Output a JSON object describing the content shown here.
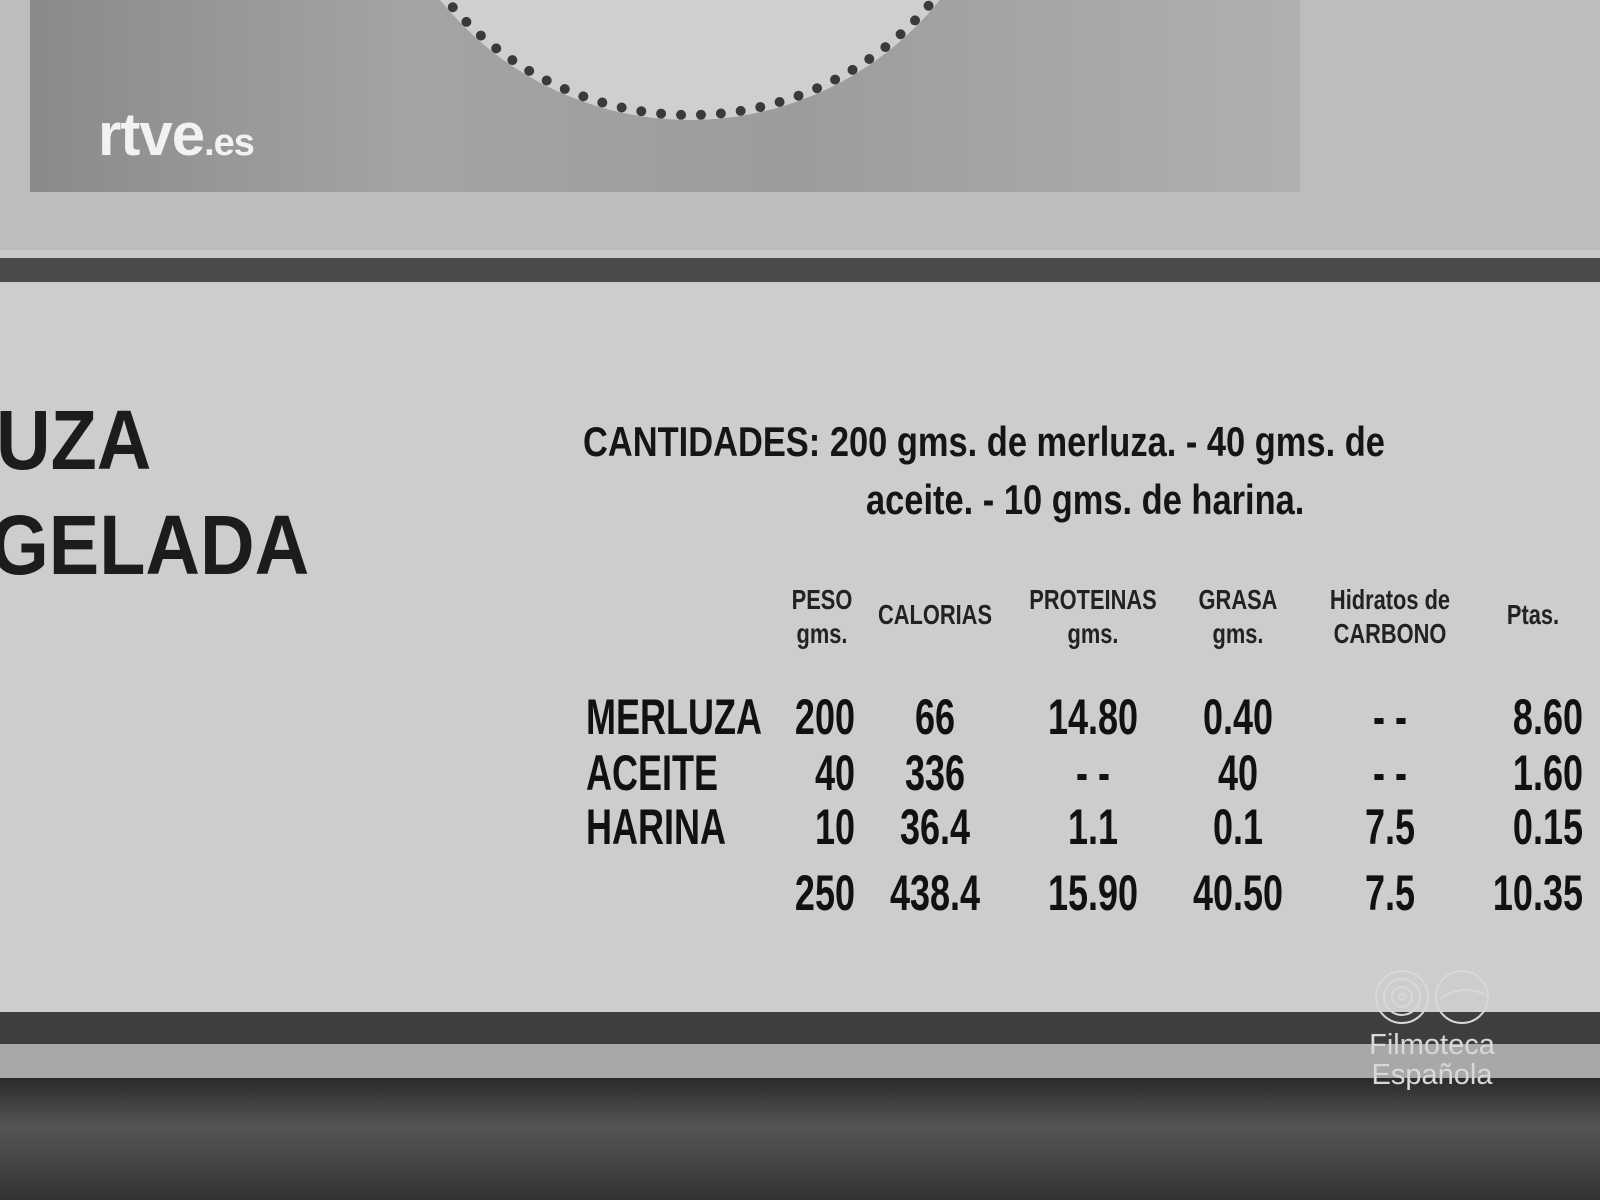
{
  "watermarks": {
    "broadcaster": "rtve.es",
    "archive": "Filmoteca Española"
  },
  "title_lines": [
    "UZA",
    "GELADA"
  ],
  "cantidades": {
    "label": "CANTIDADES:",
    "line1": "200 gms. de merluza. - 40 gms. de",
    "line2": "aceite. - 10 gms. de harina."
  },
  "table": {
    "headers": [
      {
        "top": "PESO",
        "bottom": "gms."
      },
      {
        "top": "CALORIAS",
        "bottom": ""
      },
      {
        "top": "PROTEINAS",
        "bottom": "gms."
      },
      {
        "top": "GRASA",
        "bottom": "gms."
      },
      {
        "top": "Hidratos de",
        "bottom": "CARBONO"
      },
      {
        "top": "Ptas.",
        "bottom": ""
      }
    ],
    "rows": [
      {
        "name": "MERLUZA",
        "values": [
          "200",
          "66",
          "14.80",
          "0.40",
          "- -",
          "8.60"
        ]
      },
      {
        "name": "ACEITE",
        "values": [
          "40",
          "336",
          "- -",
          "40",
          "- -",
          "1.60"
        ]
      },
      {
        "name": "HARINA",
        "values": [
          "10",
          "36.4",
          "1.1",
          "0.1",
          "7.5",
          "0.15"
        ]
      },
      {
        "name": "",
        "values": [
          "250",
          "438.4",
          "15.90",
          "40.50",
          "7.5",
          "10.35"
        ]
      }
    ]
  }
}
